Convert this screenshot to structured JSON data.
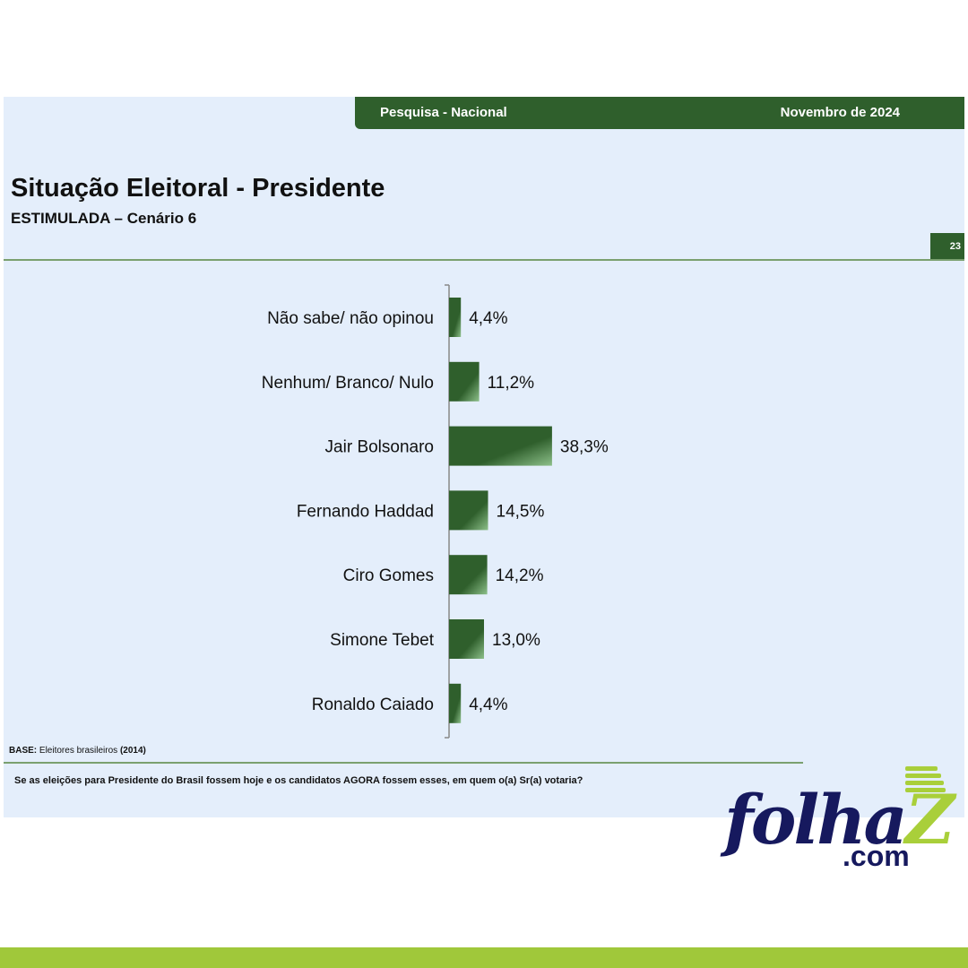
{
  "header": {
    "left_label": "Pesquisa - Nacional",
    "right_label": "Novembro de 2024",
    "page_number": "23"
  },
  "title": "Situação Eleitoral - Presidente",
  "subtitle": "ESTIMULADA – Cenário 6",
  "footer": {
    "base_label": "BASE:",
    "base_text": "Eleitores brasileiros",
    "base_count": "(2014)",
    "question": "Se as eleições para Presidente do Brasil fossem hoje e os candidatos AGORA fossem esses, em quem o(a) Sr(a) votaria?"
  },
  "logo": {
    "main": "folha",
    "z": "Z",
    "com": ".com"
  },
  "colors": {
    "bar": "#2f5f2c",
    "bar_highlight": "#8dc08a",
    "accent": "#a0c83a",
    "brand_navy": "#16195e"
  },
  "chart_data": {
    "type": "bar",
    "orientation": "horizontal",
    "categories": [
      "Não sabe/ não opinou",
      "Nenhum/ Branco/ Nulo",
      "Jair Bolsonaro",
      "Fernando Haddad",
      "Ciro Gomes",
      "Simone Tebet",
      "Ronaldo Caiado"
    ],
    "values": [
      4.4,
      11.2,
      38.3,
      14.5,
      14.2,
      13.0,
      4.4
    ],
    "value_labels": [
      "4,4%",
      "11,2%",
      "38,3%",
      "14,5%",
      "14,2%",
      "13,0%",
      "4,4%"
    ],
    "unit": "%",
    "xlim": [
      0,
      100
    ],
    "grid": false,
    "legend": "none"
  }
}
